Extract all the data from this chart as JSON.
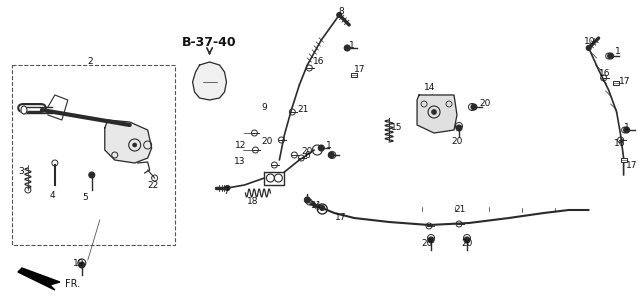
{
  "bg_color": "#ffffff",
  "line_color": "#2a2a2a",
  "label_color": "#111111",
  "label_fontsize": 6.5,
  "fig_width": 6.4,
  "fig_height": 3.0,
  "dpi": 100
}
